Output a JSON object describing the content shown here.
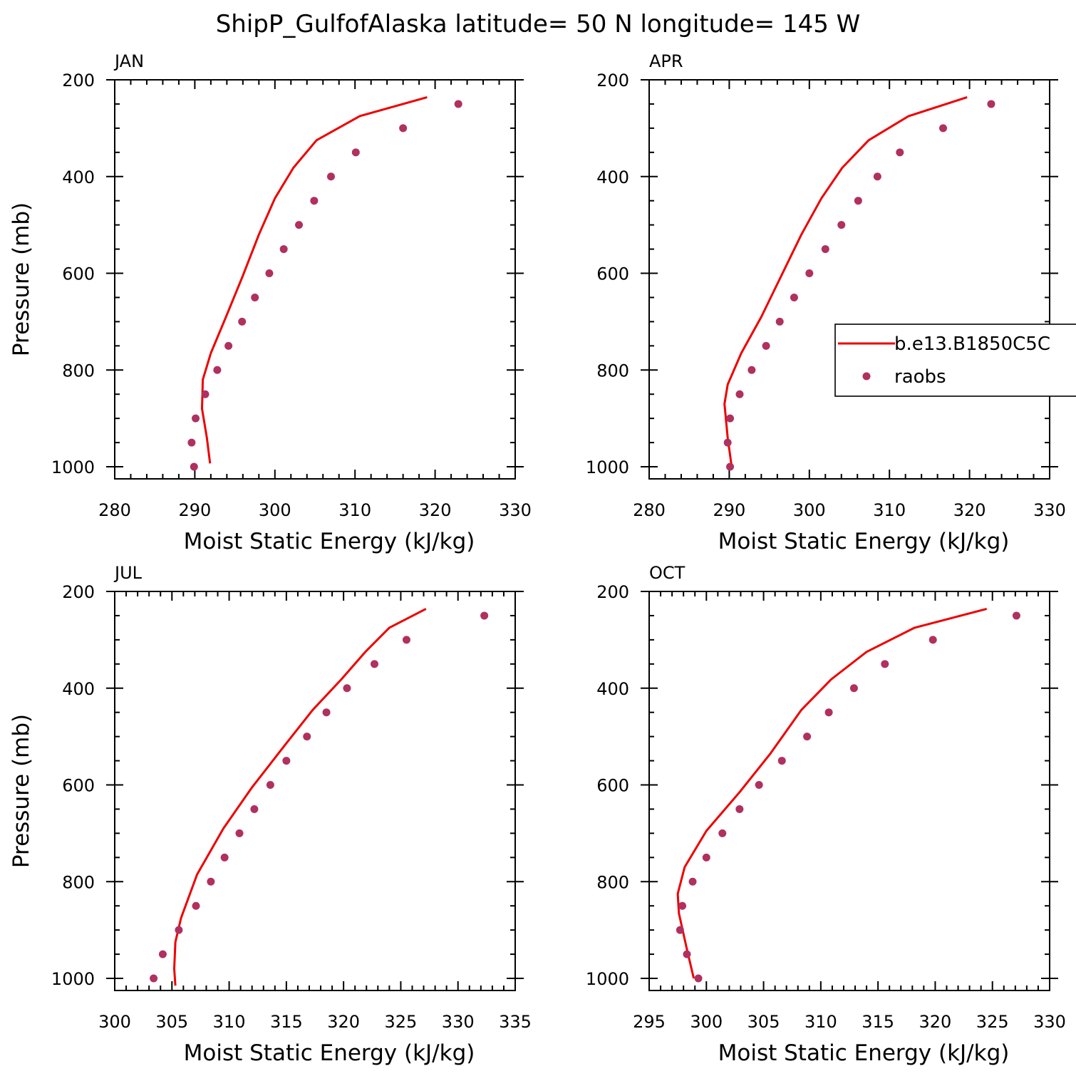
{
  "title": "ShipP_GulfofAlaska  latitude= 50 N longitude= 145 W",
  "colors": {
    "model": "#ee0000",
    "obs": "#b03060",
    "axis": "#000000"
  },
  "legend": {
    "model": "b.e13.B1850C5C",
    "obs": "raobs"
  },
  "chart_data": [
    {
      "type": "line",
      "panel": "JAN",
      "xlabel": "Moist Static Energy (kJ/kg)",
      "ylabel": "Pressure (mb)",
      "xlim": [
        280,
        330
      ],
      "ylim": [
        1025,
        200
      ],
      "xticks": [
        280,
        290,
        300,
        310,
        320,
        330
      ],
      "yticks": [
        200,
        400,
        600,
        800,
        1000
      ],
      "series": [
        {
          "name": "b.e13.B1850C5C",
          "kind": "line",
          "x": [
            319.0,
            310.6,
            305.2,
            302.3,
            300.0,
            298.0,
            296.0,
            293.9,
            292.0,
            291.0,
            290.9,
            291.5,
            291.9
          ],
          "y": [
            236,
            275,
            325,
            382,
            445,
            520,
            605,
            690,
            765,
            820,
            880,
            940,
            993
          ]
        },
        {
          "name": "raobs",
          "kind": "scatter",
          "x": [
            322.9,
            316.0,
            310.1,
            307.0,
            304.9,
            303.0,
            301.1,
            299.3,
            297.5,
            295.9,
            294.2,
            292.8,
            291.3,
            290.1,
            289.6,
            289.9
          ],
          "y": [
            250,
            300,
            350,
            400,
            450,
            500,
            550,
            600,
            650,
            700,
            750,
            800,
            850,
            900,
            950,
            1000
          ]
        }
      ]
    },
    {
      "type": "line",
      "panel": "APR",
      "xlabel": "Moist Static Energy (kJ/kg)",
      "ylabel": "",
      "xlim": [
        280,
        330
      ],
      "ylim": [
        1025,
        200
      ],
      "xticks": [
        280,
        290,
        300,
        310,
        320,
        330
      ],
      "yticks": [
        200,
        400,
        600,
        800,
        1000
      ],
      "series": [
        {
          "name": "b.e13.B1850C5C",
          "kind": "line",
          "x": [
            319.7,
            312.4,
            307.4,
            304.1,
            301.5,
            299.0,
            296.5,
            294.0,
            291.5,
            289.8,
            289.4,
            289.8,
            290.3
          ],
          "y": [
            236,
            275,
            325,
            382,
            445,
            520,
            605,
            690,
            765,
            830,
            870,
            940,
            1000
          ]
        },
        {
          "name": "raobs",
          "kind": "scatter",
          "x": [
            322.7,
            316.7,
            311.3,
            308.5,
            306.1,
            304.0,
            302.0,
            300.0,
            298.1,
            296.3,
            294.6,
            292.8,
            291.3,
            290.1,
            289.8,
            290.1
          ],
          "y": [
            250,
            300,
            350,
            400,
            450,
            500,
            550,
            600,
            650,
            700,
            750,
            800,
            850,
            900,
            950,
            1000
          ]
        }
      ]
    },
    {
      "type": "line",
      "panel": "JUL",
      "xlabel": "Moist Static Energy (kJ/kg)",
      "ylabel": "Pressure (mb)",
      "xlim": [
        300,
        335
      ],
      "ylim": [
        1025,
        200
      ],
      "xticks": [
        300,
        305,
        310,
        315,
        320,
        325,
        330,
        335
      ],
      "yticks": [
        200,
        400,
        600,
        800,
        1000
      ],
      "series": [
        {
          "name": "b.e13.B1850C5C",
          "kind": "line",
          "x": [
            327.2,
            324.0,
            321.9,
            319.8,
            317.3,
            314.8,
            312.0,
            309.5,
            307.2,
            305.8,
            305.3,
            305.2,
            305.3
          ],
          "y": [
            236,
            275,
            325,
            382,
            445,
            520,
            605,
            690,
            785,
            875,
            925,
            980,
            1015
          ]
        },
        {
          "name": "raobs",
          "kind": "scatter",
          "x": [
            332.3,
            325.5,
            322.7,
            320.3,
            318.5,
            316.8,
            315.0,
            313.6,
            312.2,
            310.9,
            309.6,
            308.4,
            307.1,
            305.6,
            304.2,
            303.4
          ],
          "y": [
            250,
            300,
            350,
            400,
            450,
            500,
            550,
            600,
            650,
            700,
            750,
            800,
            850,
            900,
            950,
            1000
          ]
        }
      ]
    },
    {
      "type": "line",
      "panel": "OCT",
      "xlabel": "Moist Static Energy (kJ/kg)",
      "ylabel": "",
      "xlim": [
        295,
        330
      ],
      "ylim": [
        1025,
        200
      ],
      "xticks": [
        295,
        300,
        305,
        310,
        315,
        320,
        325,
        330
      ],
      "yticks": [
        200,
        400,
        600,
        800,
        1000
      ],
      "series": [
        {
          "name": "b.e13.B1850C5C",
          "kind": "line",
          "x": [
            324.5,
            318.2,
            314.0,
            310.9,
            308.3,
            305.6,
            302.9,
            300.0,
            298.1,
            297.5,
            297.6,
            298.3,
            298.9
          ],
          "y": [
            236,
            275,
            325,
            382,
            445,
            535,
            615,
            695,
            770,
            825,
            865,
            940,
            1000
          ]
        },
        {
          "name": "raobs",
          "kind": "scatter",
          "x": [
            327.1,
            319.8,
            315.6,
            312.9,
            310.7,
            308.8,
            306.6,
            304.6,
            302.9,
            301.4,
            300.0,
            298.8,
            297.9,
            297.7,
            298.3,
            299.3
          ],
          "y": [
            250,
            300,
            350,
            400,
            450,
            500,
            550,
            600,
            650,
            700,
            750,
            800,
            850,
            900,
            950,
            1000
          ]
        }
      ]
    }
  ]
}
